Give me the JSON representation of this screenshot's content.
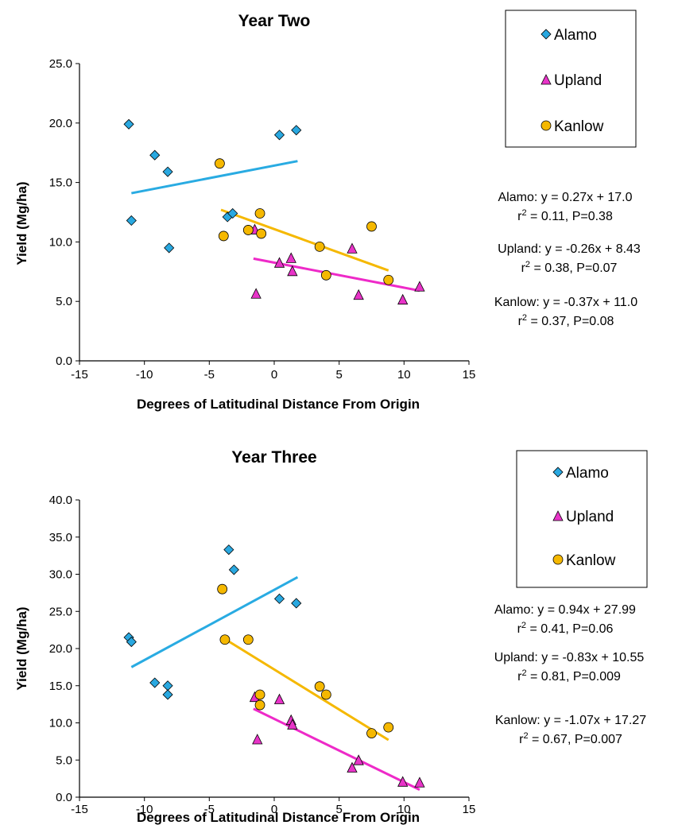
{
  "chart_data": [
    {
      "type": "scatter",
      "title": "Year Two",
      "xlabel": "Degrees of Latitudinal Distance From Origin",
      "ylabel": "Yield (Mg/ha)",
      "xlim": [
        -15,
        15
      ],
      "ylim": [
        0,
        25
      ],
      "xticks": [
        "-15",
        "-10",
        "-5",
        "0",
        "5",
        "10",
        "15"
      ],
      "yticks": [
        "0.0",
        "5.0",
        "10.0",
        "15.0",
        "20.0",
        "25.0"
      ],
      "legend": {
        "placement": "top-right",
        "entries": [
          "Alamo",
          "Upland",
          "Kanlow"
        ]
      },
      "series": [
        {
          "name": "Alamo",
          "marker": "diamond",
          "color": "#29a8e0",
          "line_color": "#29abe2",
          "points": [
            [
              -11.2,
              19.9
            ],
            [
              -11.0,
              11.8
            ],
            [
              -9.2,
              17.3
            ],
            [
              -8.2,
              15.9
            ],
            [
              -8.1,
              9.5
            ],
            [
              -3.6,
              12.1
            ],
            [
              -3.2,
              12.4
            ],
            [
              0.4,
              19.0
            ],
            [
              1.7,
              19.4
            ]
          ],
          "trend": [
            [
              -11.0,
              14.1
            ],
            [
              1.8,
              16.8
            ]
          ]
        },
        {
          "name": "Upland",
          "marker": "triangle",
          "color": "#e833c8",
          "line_color": "#ee2ac8",
          "points": [
            [
              -1.5,
              11.0
            ],
            [
              -1.4,
              5.6
            ],
            [
              0.4,
              8.2
            ],
            [
              1.3,
              8.6
            ],
            [
              1.4,
              7.5
            ],
            [
              6.0,
              9.4
            ],
            [
              6.5,
              5.5
            ],
            [
              9.9,
              5.1
            ],
            [
              11.2,
              6.2
            ]
          ],
          "trend": [
            [
              -1.6,
              8.6
            ],
            [
              11.2,
              5.9
            ]
          ]
        },
        {
          "name": "Kanlow",
          "marker": "circle",
          "color": "#f5b800",
          "line_color": "#f5b800",
          "points": [
            [
              -4.2,
              16.6
            ],
            [
              -3.9,
              10.5
            ],
            [
              -2.0,
              11.0
            ],
            [
              -1.1,
              12.4
            ],
            [
              -1.0,
              10.7
            ],
            [
              3.5,
              9.6
            ],
            [
              4.0,
              7.2
            ],
            [
              7.5,
              11.3
            ],
            [
              8.8,
              6.8
            ]
          ],
          "trend": [
            [
              -4.1,
              12.7
            ],
            [
              8.8,
              7.6
            ]
          ]
        }
      ],
      "equations": [
        {
          "line1": "Alamo: y = 0.27x + 17.0",
          "line2": "r",
          "sup": "2",
          "line2b": " = 0.11, P=0.38"
        },
        {
          "line1": "Upland: y = -0.26x + 8.43",
          "line2": "r",
          "sup": "2",
          "line2b": " = 0.38, P=0.07"
        },
        {
          "line1": "Kanlow: y = -0.37x + 11.0",
          "line2": "r",
          "sup": "2",
          "line2b": " = 0.37, P=0.08"
        }
      ]
    },
    {
      "type": "scatter",
      "title": "Year Three",
      "xlabel": "Degrees of Latitudinal Distance From Origin",
      "ylabel": "Yield (Mg/ha)",
      "xlim": [
        -15,
        15
      ],
      "ylim": [
        0,
        40
      ],
      "xticks": [
        "-15",
        "-10",
        "-5",
        "0",
        "5",
        "10",
        "15"
      ],
      "yticks": [
        "0.0",
        "5.0",
        "10.0",
        "15.0",
        "20.0",
        "25.0",
        "30.0",
        "35.0",
        "40.0"
      ],
      "legend": {
        "placement": "top-right",
        "entries": [
          "Alamo",
          "Upland",
          "Kanlow"
        ]
      },
      "series": [
        {
          "name": "Alamo",
          "marker": "diamond",
          "color": "#29a8e0",
          "line_color": "#29abe2",
          "points": [
            [
              -11.2,
              21.5
            ],
            [
              -11.0,
              20.9
            ],
            [
              -9.2,
              15.4
            ],
            [
              -8.2,
              15.0
            ],
            [
              -8.2,
              13.8
            ],
            [
              -3.5,
              33.3
            ],
            [
              -3.1,
              30.6
            ],
            [
              0.4,
              26.7
            ],
            [
              1.7,
              26.1
            ]
          ],
          "trend": [
            [
              -11.0,
              17.5
            ],
            [
              1.8,
              29.6
            ]
          ]
        },
        {
          "name": "Upland",
          "marker": "triangle",
          "color": "#e833c8",
          "line_color": "#ee2ac8",
          "points": [
            [
              -1.5,
              13.4
            ],
            [
              -1.3,
              7.7
            ],
            [
              0.4,
              13.1
            ],
            [
              1.3,
              10.3
            ],
            [
              1.4,
              9.7
            ],
            [
              6.0,
              3.9
            ],
            [
              6.5,
              4.9
            ],
            [
              9.9,
              2.0
            ],
            [
              11.2,
              1.9
            ]
          ],
          "trend": [
            [
              -1.6,
              11.9
            ],
            [
              11.2,
              1.0
            ]
          ]
        },
        {
          "name": "Kanlow",
          "marker": "circle",
          "color": "#f5b800",
          "line_color": "#f5b800",
          "points": [
            [
              -4.0,
              28.0
            ],
            [
              -3.8,
              21.2
            ],
            [
              -2.0,
              21.2
            ],
            [
              -1.1,
              13.8
            ],
            [
              -1.1,
              12.4
            ],
            [
              3.5,
              14.9
            ],
            [
              4.0,
              13.8
            ],
            [
              7.5,
              8.6
            ],
            [
              8.8,
              9.4
            ]
          ],
          "trend": [
            [
              -4.0,
              21.5
            ],
            [
              8.8,
              7.7
            ]
          ]
        }
      ],
      "equations": [
        {
          "line1": "Alamo: y = 0.94x + 27.99",
          "line2": "r",
          "sup": "2",
          "line2b": " = 0.41, P=0.06"
        },
        {
          "line1": "Upland: y = -0.83x + 10.55",
          "line2": "r",
          "sup": "2",
          "line2b": " = 0.81, P=0.009"
        },
        {
          "line1": "Kanlow: y = -1.07x + 17.27",
          "line2": "r",
          "sup": "2",
          "line2b": " = 0.67, P=0.007"
        }
      ]
    }
  ]
}
